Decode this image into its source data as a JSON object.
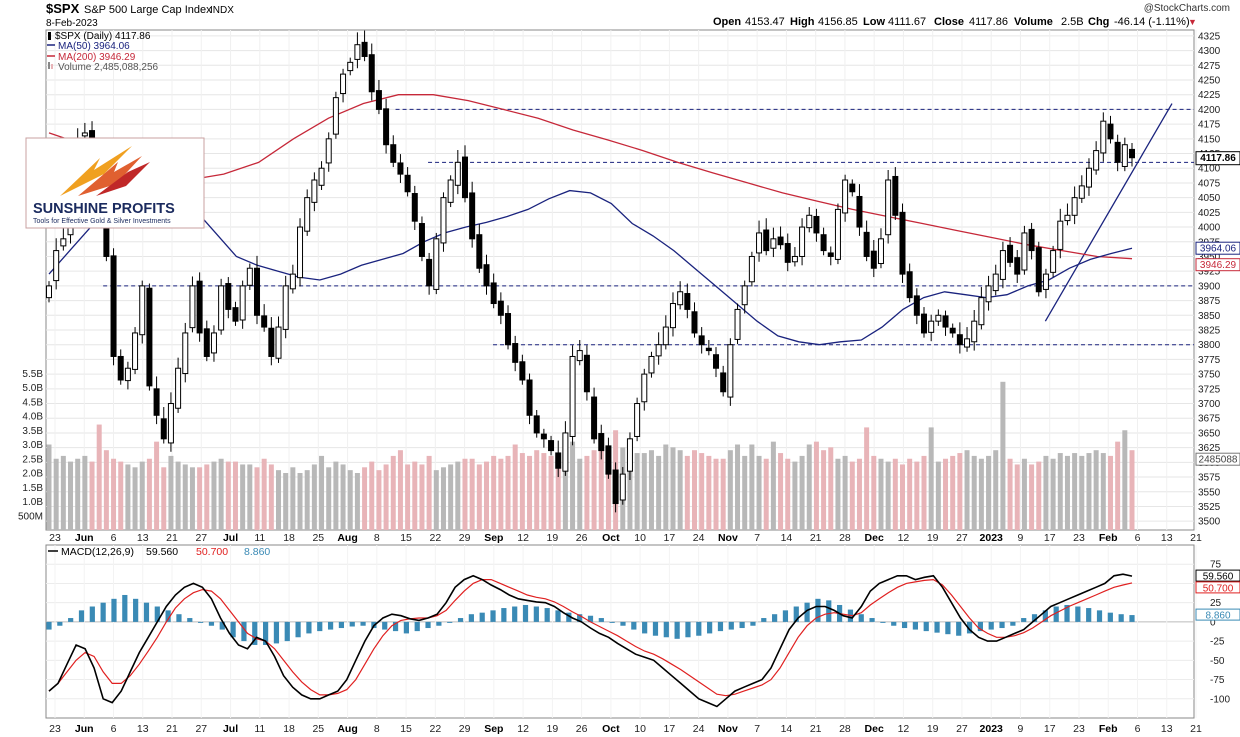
{
  "header": {
    "symbol": "$SPX",
    "name": "S&P 500 Large Cap Index",
    "exchange": "INDX",
    "date": "8-Feb-2023",
    "credit": "@StockCharts.com",
    "open_label": "Open",
    "open": "4153.47",
    "high_label": "High",
    "high": "4156.85",
    "low_label": "Low",
    "low": "4111.67",
    "close_label": "Close",
    "close": "4117.86",
    "volume_label": "Volume",
    "volume": "2.5B",
    "chg_label": "Chg",
    "chg": "-46.14 (-1.11%)",
    "down_arrow": "▼"
  },
  "legend": [
    {
      "text": "$SPX (Daily) 4117.86",
      "color": "#000000",
      "icon": "candle-icon"
    },
    {
      "text": "MA(50) 3964.06",
      "color": "#1a237e",
      "icon": "line-icon"
    },
    {
      "text": "MA(200) 3946.29",
      "color": "#c62839",
      "icon": "line-icon"
    },
    {
      "text": "Volume 2,485,088,256",
      "color": "#555555",
      "icon": "bar-icon"
    }
  ],
  "macd_legend": {
    "label": "MACD(12,26,9)",
    "macd": "59.560",
    "signal": "50.700",
    "hist": "8.860"
  },
  "logo": {
    "name": "SUNSHINE PROFITS",
    "tagline": "Tools for Effective Gold & Silver Investments"
  },
  "badges": {
    "price": "4117.86",
    "ma50": "3964.06",
    "ma200": "3946.29",
    "volume": "2485088",
    "macd": "59.560",
    "signal": "50.700",
    "hist": "8.860"
  },
  "colors": {
    "up": "#ffffff",
    "down": "#000000",
    "ma50": "#1a237e",
    "ma200": "#c62839",
    "vol_up": "#b8b8b8",
    "vol_down": "#e8b4b8",
    "hist": "#3a8ab5",
    "macd": "#000000",
    "signal": "#e02020",
    "support": "#1a237e"
  },
  "chart_data": [
    {
      "type": "candlestick",
      "title": "$SPX S&P 500 Large Cap Index INDX",
      "ylim": [
        3485,
        4335
      ],
      "y_ticks": [
        3500,
        3525,
        3550,
        3575,
        3600,
        3625,
        3650,
        3675,
        3700,
        3725,
        3750,
        3775,
        3800,
        3825,
        3850,
        3875,
        3900,
        3925,
        3950,
        3975,
        4000,
        4025,
        4050,
        4075,
        4100,
        4125,
        4150,
        4175,
        4200,
        4225,
        4250,
        4275,
        4300,
        4325
      ],
      "x_labels": [
        "23",
        "Jun",
        "6",
        "13",
        "21",
        "27",
        "Jul",
        "11",
        "18",
        "25",
        "Aug",
        "8",
        "15",
        "22",
        "29",
        "Sep",
        "12",
        "19",
        "26",
        "Oct",
        "10",
        "17",
        "24",
        "Nov",
        "7",
        "14",
        "21",
        "28",
        "Dec",
        "12",
        "19",
        "27",
        "2023",
        "9",
        "17",
        "23",
        "Feb",
        "6",
        "13",
        "21"
      ],
      "x_label_bold": [
        "Jun",
        "Jul",
        "Aug",
        "Sep",
        "Oct",
        "Nov",
        "Dec",
        "2023",
        "Feb"
      ],
      "ohlc_path": [
        3900,
        3960,
        3980,
        4100,
        4150,
        4160,
        4100,
        4080,
        3950,
        3780,
        3740,
        3760,
        3820,
        3900,
        3730,
        3680,
        3640,
        3700,
        3760,
        3820,
        3900,
        3820,
        3780,
        3820,
        3900,
        3860,
        3840,
        3900,
        3930,
        3850,
        3830,
        3780,
        3830,
        3900,
        3920,
        4000,
        4050,
        4080,
        4100,
        4150,
        4220,
        4260,
        4280,
        4310,
        4290,
        4230,
        4200,
        4140,
        4110,
        4090,
        4060,
        4010,
        3950,
        3900,
        3980,
        4050,
        4080,
        4110,
        4050,
        3980,
        3930,
        3900,
        3870,
        3850,
        3800,
        3770,
        3740,
        3680,
        3650,
        3640,
        3620,
        3590,
        3650,
        3780,
        3790,
        3720,
        3640,
        3620,
        3580,
        3530,
        3580,
        3640,
        3700,
        3750,
        3780,
        3800,
        3830,
        3870,
        3890,
        3860,
        3820,
        3800,
        3790,
        3760,
        3720,
        3800,
        3860,
        3900,
        3950,
        3990,
        3960,
        3980,
        3970,
        3940,
        3950,
        4000,
        4020,
        3990,
        3960,
        3950,
        4030,
        4080,
        4060,
        4000,
        3950,
        3930,
        3980,
        4080,
        4020,
        3920,
        3880,
        3850,
        3820,
        3840,
        3850,
        3830,
        3820,
        3800,
        3810,
        3840,
        3880,
        3900,
        3920,
        3960,
        3940,
        3920,
        3990,
        3960,
        3890,
        3920,
        3960,
        4010,
        4020,
        4050,
        4070,
        4100,
        4130,
        4180,
        4150,
        4110,
        4140,
        4117.86
      ],
      "ma50": [
        3920,
        3960,
        4000,
        4040,
        4060,
        4070,
        4065,
        4030,
        3990,
        3950,
        3935,
        3925,
        3915,
        3910,
        3920,
        3935,
        3945,
        3955,
        3975,
        3990,
        4000,
        4008,
        4018,
        4030,
        4048,
        4062,
        4058,
        4040,
        4006,
        3985,
        3960,
        3930,
        3900,
        3870,
        3840,
        3815,
        3805,
        3800,
        3805,
        3808,
        3830,
        3860,
        3880,
        3890,
        3885,
        3880,
        3885,
        3900,
        3910,
        3930,
        3945,
        3955,
        3964.06
      ],
      "ma200": [
        4160,
        4140,
        4110,
        4090,
        4080,
        4090,
        4110,
        4150,
        4185,
        4210,
        4225,
        4225,
        4215,
        4200,
        4185,
        4165,
        4148,
        4130,
        4110,
        4092,
        4075,
        4058,
        4044,
        4030,
        4018,
        4006,
        3994,
        3982,
        3970,
        3960,
        3950,
        3946.29
      ],
      "support_levels": [
        4200,
        4110,
        3900,
        3800
      ],
      "last_close": 4117.86
    },
    {
      "type": "bar",
      "title": "Volume",
      "ylim": [
        0,
        5.5
      ],
      "unit": "B",
      "y_ticks": [
        0.5,
        1.0,
        1.5,
        2.0,
        2.5,
        3.0,
        3.5,
        4.0,
        4.5,
        5.0,
        5.5
      ],
      "y_tick_labels": [
        "500M",
        "1.0B",
        "1.5B",
        "2.0B",
        "2.5B",
        "3.0B",
        "3.5B",
        "4.0B",
        "4.5B",
        "5.0B",
        "5.5B"
      ],
      "volume_levels": [
        3.0,
        2.5,
        2.6,
        2.4,
        2.5,
        2.6,
        2.4,
        3.7,
        2.8,
        2.5,
        2.4,
        2.3,
        2.2,
        2.4,
        2.5,
        3.1,
        2.2,
        2.6,
        2.4,
        2.3,
        2.2,
        2.2,
        2.3,
        2.4,
        2.5,
        2.4,
        2.4,
        2.3,
        2.3,
        2.2,
        2.5,
        2.3,
        2.1,
        2.0,
        2.2,
        2.0,
        2.1,
        2.3,
        2.6,
        2.2,
        2.4,
        2.3,
        2.1,
        2.0,
        2.2,
        2.4,
        2.1,
        2.3,
        2.6,
        2.8,
        2.3,
        2.4,
        2.3,
        2.6,
        2.1,
        2.2,
        2.3,
        2.4,
        2.5,
        2.5,
        2.3,
        2.4,
        2.6,
        2.5,
        2.6,
        3.0,
        2.7,
        2.6,
        2.8,
        2.7,
        2.6,
        2.5,
        2.4,
        3.1,
        2.5,
        2.6,
        2.8,
        2.9,
        2.7,
        3.5,
        2.9,
        2.6,
        2.7,
        2.7,
        2.8,
        2.6,
        3.0,
        2.9,
        2.8,
        2.6,
        2.8,
        2.7,
        2.6,
        2.5,
        2.5,
        2.8,
        3.0,
        2.6,
        3.0,
        2.6,
        2.5,
        3.1,
        2.7,
        2.5,
        2.4,
        2.6,
        3.0,
        3.1,
        2.8,
        2.9,
        2.5,
        2.6,
        2.4,
        2.5,
        3.6,
        2.6,
        2.5,
        2.4,
        2.5,
        2.3,
        2.5,
        2.4,
        2.6,
        3.6,
        2.4,
        2.5,
        2.6,
        2.7,
        2.8,
        2.6,
        2.5,
        2.6,
        2.8,
        5.2,
        2.5,
        2.3,
        2.5,
        2.3,
        2.4,
        2.6,
        2.5,
        2.7,
        2.6,
        2.7,
        2.6,
        2.7,
        2.8,
        2.7,
        2.6,
        3.1,
        3.5,
        2.8,
        2.6,
        2.7,
        2.5
      ],
      "last_volume": 2485088256
    },
    {
      "type": "line",
      "title": "MACD(12,26,9)",
      "ylim": [
        -125,
        100
      ],
      "y_ticks": [
        75,
        50,
        25,
        0,
        -25,
        -50,
        -75,
        -100
      ],
      "macd_line": [
        -90,
        -80,
        -55,
        -30,
        -35,
        -60,
        -100,
        -105,
        -90,
        -65,
        -40,
        -20,
        0,
        20,
        35,
        45,
        50,
        45,
        30,
        5,
        -15,
        -30,
        -35,
        -20,
        -25,
        -45,
        -70,
        -85,
        -95,
        -100,
        -100,
        -95,
        -90,
        -75,
        -50,
        -25,
        -5,
        5,
        10,
        8,
        4,
        2,
        5,
        10,
        25,
        45,
        55,
        60,
        55,
        48,
        42,
        35,
        30,
        28,
        26,
        25,
        20,
        12,
        5,
        0,
        -8,
        -15,
        -20,
        -28,
        -35,
        -42,
        -46,
        -50,
        -60,
        -70,
        -80,
        -90,
        -100,
        -105,
        -110,
        -100,
        -90,
        -85,
        -80,
        -75,
        -60,
        -35,
        -10,
        5,
        15,
        20,
        20,
        15,
        8,
        5,
        20,
        40,
        50,
        55,
        60,
        60,
        55,
        58,
        60,
        45,
        25,
        5,
        -10,
        -20,
        -25,
        -25,
        -20,
        -15,
        -10,
        0,
        10,
        20,
        25,
        30,
        35,
        40,
        45,
        50,
        60,
        62,
        59.56
      ],
      "signal_line": [
        -90,
        -80,
        -65,
        -50,
        -40,
        -45,
        -65,
        -80,
        -80,
        -70,
        -55,
        -38,
        -20,
        0,
        18,
        30,
        38,
        42,
        40,
        30,
        15,
        0,
        -15,
        -22,
        -25,
        -35,
        -50,
        -65,
        -78,
        -88,
        -95,
        -95,
        -93,
        -88,
        -75,
        -55,
        -35,
        -18,
        -5,
        2,
        4,
        5,
        5,
        8,
        15,
        28,
        40,
        50,
        55,
        55,
        50,
        45,
        40,
        35,
        32,
        30,
        26,
        20,
        13,
        7,
        0,
        -6,
        -12,
        -18,
        -25,
        -32,
        -38,
        -42,
        -48,
        -55,
        -62,
        -70,
        -78,
        -86,
        -94,
        -96,
        -94,
        -90,
        -86,
        -82,
        -75,
        -60,
        -40,
        -20,
        -5,
        5,
        10,
        12,
        10,
        8,
        12,
        22,
        30,
        38,
        45,
        50,
        52,
        54,
        55,
        48,
        35,
        20,
        5,
        -8,
        -15,
        -20,
        -20,
        -18,
        -14,
        -8,
        0,
        8,
        14,
        20,
        25,
        30,
        35,
        40,
        45,
        48,
        50.7
      ],
      "histogram": [
        -10,
        -5,
        5,
        15,
        20,
        25,
        30,
        35,
        30,
        25,
        20,
        15,
        10,
        5,
        0,
        -5,
        -10,
        -20,
        -25,
        -30,
        -30,
        -28,
        -25,
        -20,
        -15,
        -12,
        -10,
        -8,
        -6,
        -5,
        -8,
        -10,
        -12,
        -15,
        -12,
        -8,
        -5,
        0,
        5,
        10,
        12,
        15,
        18,
        20,
        22,
        20,
        18,
        15,
        12,
        10,
        8,
        5,
        0,
        -5,
        -10,
        -15,
        -18,
        -20,
        -22,
        -20,
        -18,
        -15,
        -12,
        -10,
        -8,
        -5,
        5,
        10,
        15,
        20,
        25,
        30,
        28,
        22,
        16,
        10,
        5,
        0,
        -5,
        -8,
        -10,
        -12,
        -14,
        -16,
        -18,
        -15,
        -12,
        -10,
        -8,
        -5,
        5,
        10,
        15,
        20,
        22,
        20,
        18,
        15,
        12,
        10,
        8.86
      ]
    }
  ]
}
